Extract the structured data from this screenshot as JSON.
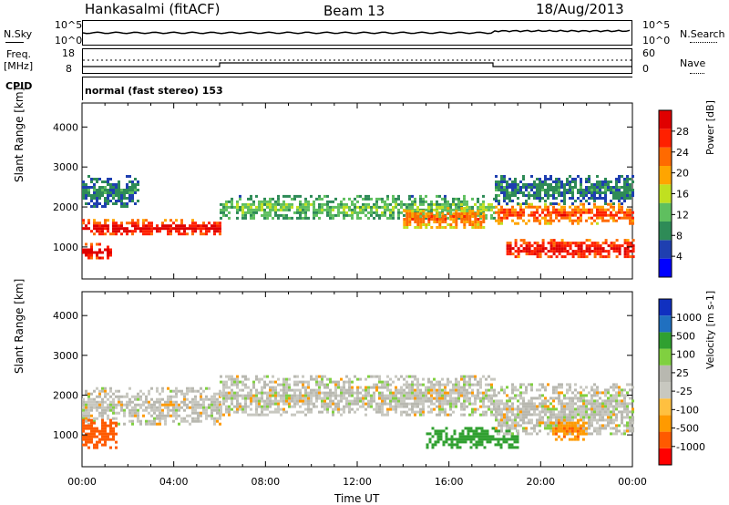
{
  "header": {
    "station": "Hankasalmi (fitACF)",
    "beam": "Beam 13",
    "date": "18/Aug/2013"
  },
  "panels": {
    "nsky": {
      "label": "N.Sky",
      "ticks_left": [
        "10^5",
        "10^0"
      ],
      "right_label": "N.Search",
      "ticks_right": [
        "10^5",
        "10^0"
      ]
    },
    "freq": {
      "label_top": "Freq.",
      "label_bottom": "[MHz]",
      "ticks_left": [
        "18",
        "8"
      ],
      "right_label": "Nave",
      "ticks_right": [
        "60",
        "0"
      ]
    },
    "cpid": {
      "label": "CPID",
      "text": "normal (fast stereo) 153"
    }
  },
  "colors": {
    "power": [
      "#0000ff",
      "#1f3fb0",
      "#2e8b57",
      "#5fbf5f",
      "#c0e020",
      "#ffa500",
      "#ff6a00",
      "#ff2000",
      "#e00000"
    ],
    "velocity": [
      "#ff0000",
      "#ff5a00",
      "#ff9a00",
      "#ffc040",
      "#c8c8c0",
      "#b8b8b0",
      "#80d040",
      "#30a030",
      "#2070c0",
      "#1030c0"
    ]
  },
  "chart_data": [
    {
      "type": "heatmap",
      "name_field": "power",
      "ylabel": "Slant Range [km]",
      "y_ticks": [
        "1000",
        "2000",
        "3000",
        "4000"
      ],
      "ylim": [
        200,
        4600
      ],
      "xlim": [
        "00:00",
        "24:00"
      ],
      "colorbar": {
        "label": "Power [dB]",
        "ticks": [
          "4",
          "8",
          "12",
          "16",
          "20",
          "24",
          "28"
        ],
        "range": [
          0,
          32
        ]
      },
      "bands": [
        {
          "t": [
            0.0,
            6.0
          ],
          "range": [
            1300,
            1700
          ],
          "value": 28
        },
        {
          "t": [
            0.0,
            1.2
          ],
          "range": [
            700,
            1100
          ],
          "value": 30
        },
        {
          "t": [
            0.0,
            2.5
          ],
          "range": [
            2000,
            2800
          ],
          "value": 8
        },
        {
          "t": [
            6.0,
            18.0
          ],
          "range": [
            1700,
            2300
          ],
          "value": 12
        },
        {
          "t": [
            14.0,
            17.5
          ],
          "range": [
            1500,
            2000
          ],
          "value": 22
        },
        {
          "t": [
            18.0,
            24.0
          ],
          "range": [
            1600,
            2100
          ],
          "value": 24
        },
        {
          "t": [
            18.5,
            24.0
          ],
          "range": [
            750,
            1200
          ],
          "value": 28
        },
        {
          "t": [
            18.0,
            24.0
          ],
          "range": [
            2100,
            2800
          ],
          "value": 8
        }
      ]
    },
    {
      "type": "heatmap",
      "name_field": "velocity",
      "ylabel": "Slant Range [km]",
      "y_ticks": [
        "1000",
        "2000",
        "3000",
        "4000"
      ],
      "ylim": [
        200,
        4600
      ],
      "xlabel": "Time UT",
      "x_ticks": [
        "00:00",
        "04:00",
        "08:00",
        "12:00",
        "16:00",
        "20:00",
        "00:00"
      ],
      "colorbar": {
        "label": "Velocity [m s-1]",
        "ticks": [
          "1000",
          "500",
          "100",
          "25",
          "-25",
          "-100",
          "-500",
          "-1000"
        ]
      },
      "bands": [
        {
          "t": [
            0.0,
            6.0
          ],
          "range": [
            1300,
            2200
          ],
          "value": 0
        },
        {
          "t": [
            0.0,
            1.5
          ],
          "range": [
            700,
            1400
          ],
          "value": -300
        },
        {
          "t": [
            6.0,
            18.0
          ],
          "range": [
            1500,
            2500
          ],
          "value": 0
        },
        {
          "t": [
            15.0,
            19.0
          ],
          "range": [
            700,
            1200
          ],
          "value": 150
        },
        {
          "t": [
            18.0,
            24.0
          ],
          "range": [
            1000,
            2300
          ],
          "value": 0
        },
        {
          "t": [
            20.5,
            22.0
          ],
          "range": [
            900,
            1400
          ],
          "value": -80
        }
      ]
    }
  ]
}
